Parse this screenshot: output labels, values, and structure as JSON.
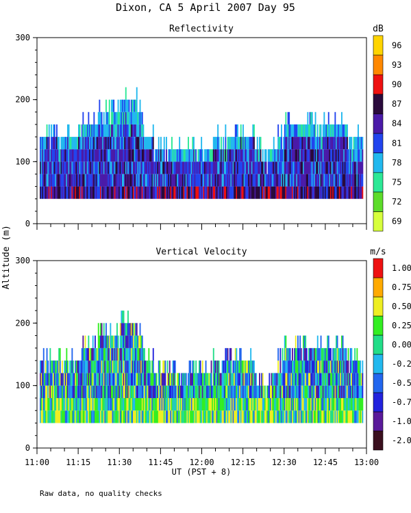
{
  "figure_title": "Dixon, CA  5 April 2007  Day  95",
  "shared_ylabel": "Altitude (m)",
  "footnote": "Raw data, no quality checks",
  "chart_data": [
    {
      "type": "heatmap",
      "title": "Reflectivity",
      "colorbar_unit": "dB",
      "colorbar_ticks": [
        "69",
        "72",
        "75",
        "78",
        "81",
        "84",
        "87",
        "90",
        "93",
        "96"
      ],
      "colorbar_colors": [
        "#d7ff3c",
        "#5ddc2a",
        "#2ce896",
        "#22b8ee",
        "#2244ee",
        "#4a1aa8",
        "#2a0a3c",
        "#ee1111",
        "#ff8800",
        "#ffd400"
      ],
      "xlabel": "",
      "x_ticks": [
        "11:00",
        "11:15",
        "11:30",
        "11:45",
        "12:00",
        "12:15",
        "12:30",
        "12:45",
        "13:00"
      ],
      "xlim": [
        0,
        120
      ],
      "ylim": [
        0,
        300
      ],
      "y_ticks": [
        "0",
        "100",
        "200",
        "300"
      ],
      "echo_base_m": 40,
      "echo_top_profile": {
        "minutes": [
          0,
          10,
          16,
          22,
          28,
          31,
          36,
          40,
          45,
          50,
          56,
          62,
          68,
          74,
          78,
          84,
          90,
          96,
          100,
          106,
          110,
          116,
          120
        ],
        "top_m": [
          140,
          140,
          150,
          170,
          170,
          200,
          195,
          140,
          120,
          120,
          120,
          120,
          150,
          140,
          135,
          100,
          150,
          160,
          160,
          155,
          160,
          140,
          120
        ]
      }
    },
    {
      "type": "heatmap",
      "title": "Vertical Velocity",
      "colorbar_unit": "m/s",
      "colorbar_ticks": [
        "-2.00",
        "-1.00",
        "-0.75",
        "-0.50",
        "-0.25",
        "0.00",
        "0.25",
        "0.50",
        "0.75",
        "1.00"
      ],
      "colorbar_colors": [
        "#3a0f1e",
        "#5a1a9a",
        "#2222dd",
        "#2266ee",
        "#22b8ee",
        "#22dd88",
        "#33ee22",
        "#eeee22",
        "#ffaa00",
        "#ee1111"
      ],
      "xlabel": "UT  (PST + 8)",
      "x_ticks": [
        "11:00",
        "11:15",
        "11:30",
        "11:45",
        "12:00",
        "12:15",
        "12:30",
        "12:45",
        "13:00"
      ],
      "xlim": [
        0,
        120
      ],
      "ylim": [
        0,
        300
      ],
      "y_ticks": [
        "0",
        "100",
        "200",
        "300"
      ],
      "echo_base_m": 40,
      "echo_top_profile": {
        "minutes": [
          0,
          10,
          16,
          22,
          28,
          31,
          36,
          40,
          45,
          50,
          56,
          62,
          68,
          74,
          78,
          84,
          90,
          96,
          100,
          106,
          110,
          116,
          120
        ],
        "top_m": [
          140,
          140,
          150,
          170,
          170,
          200,
          195,
          140,
          120,
          120,
          120,
          120,
          150,
          140,
          135,
          100,
          150,
          160,
          160,
          155,
          160,
          140,
          120
        ]
      }
    }
  ]
}
